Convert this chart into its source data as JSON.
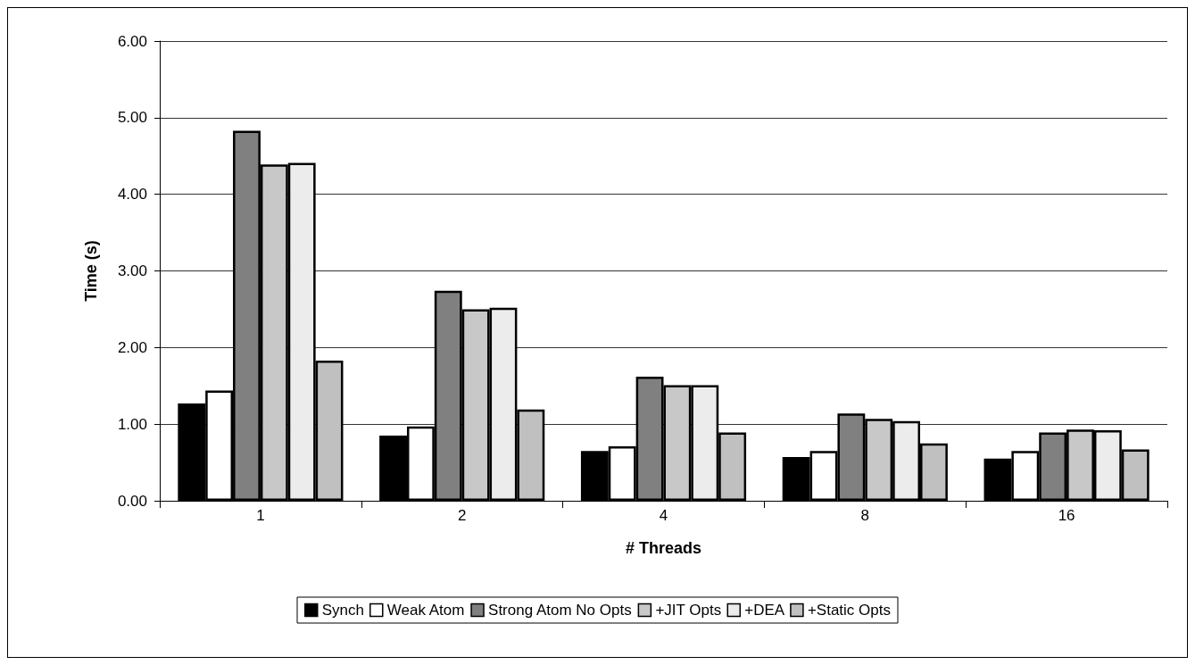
{
  "chart_data": {
    "type": "bar",
    "xlabel": "# Threads",
    "ylabel": "Time (s)",
    "categories": [
      "1",
      "2",
      "4",
      "8",
      "16"
    ],
    "series": [
      {
        "name": "Synch",
        "color": "#000000",
        "values": [
          1.27,
          0.85,
          0.65,
          0.57,
          0.55
        ]
      },
      {
        "name": "Weak Atom",
        "color": "#ffffff",
        "values": [
          1.44,
          0.97,
          0.71,
          0.65,
          0.65
        ]
      },
      {
        "name": "Strong Atom No Opts",
        "color": "#808080",
        "values": [
          4.83,
          2.74,
          1.62,
          1.14,
          0.89
        ]
      },
      {
        "name": "+JIT Opts",
        "color": "#c8c8c8",
        "values": [
          4.39,
          2.5,
          1.51,
          1.07,
          0.93
        ]
      },
      {
        "name": "+DEA",
        "color": "#ececec",
        "values": [
          4.41,
          2.52,
          1.51,
          1.04,
          0.92
        ]
      },
      {
        "name": "+Static Opts",
        "color": "#c0c0c0",
        "values": [
          1.83,
          1.19,
          0.89,
          0.75,
          0.67
        ]
      }
    ],
    "ylim": [
      0,
      6
    ],
    "yticks": [
      {
        "value": 0,
        "label": "0.00"
      },
      {
        "value": 1,
        "label": "1.00"
      },
      {
        "value": 2,
        "label": "2.00"
      },
      {
        "value": 3,
        "label": "3.00"
      },
      {
        "value": 4,
        "label": "4.00"
      },
      {
        "value": 5,
        "label": "5.00"
      },
      {
        "value": 6,
        "label": "6.00"
      }
    ],
    "grid": "y",
    "legend": "bottom"
  }
}
